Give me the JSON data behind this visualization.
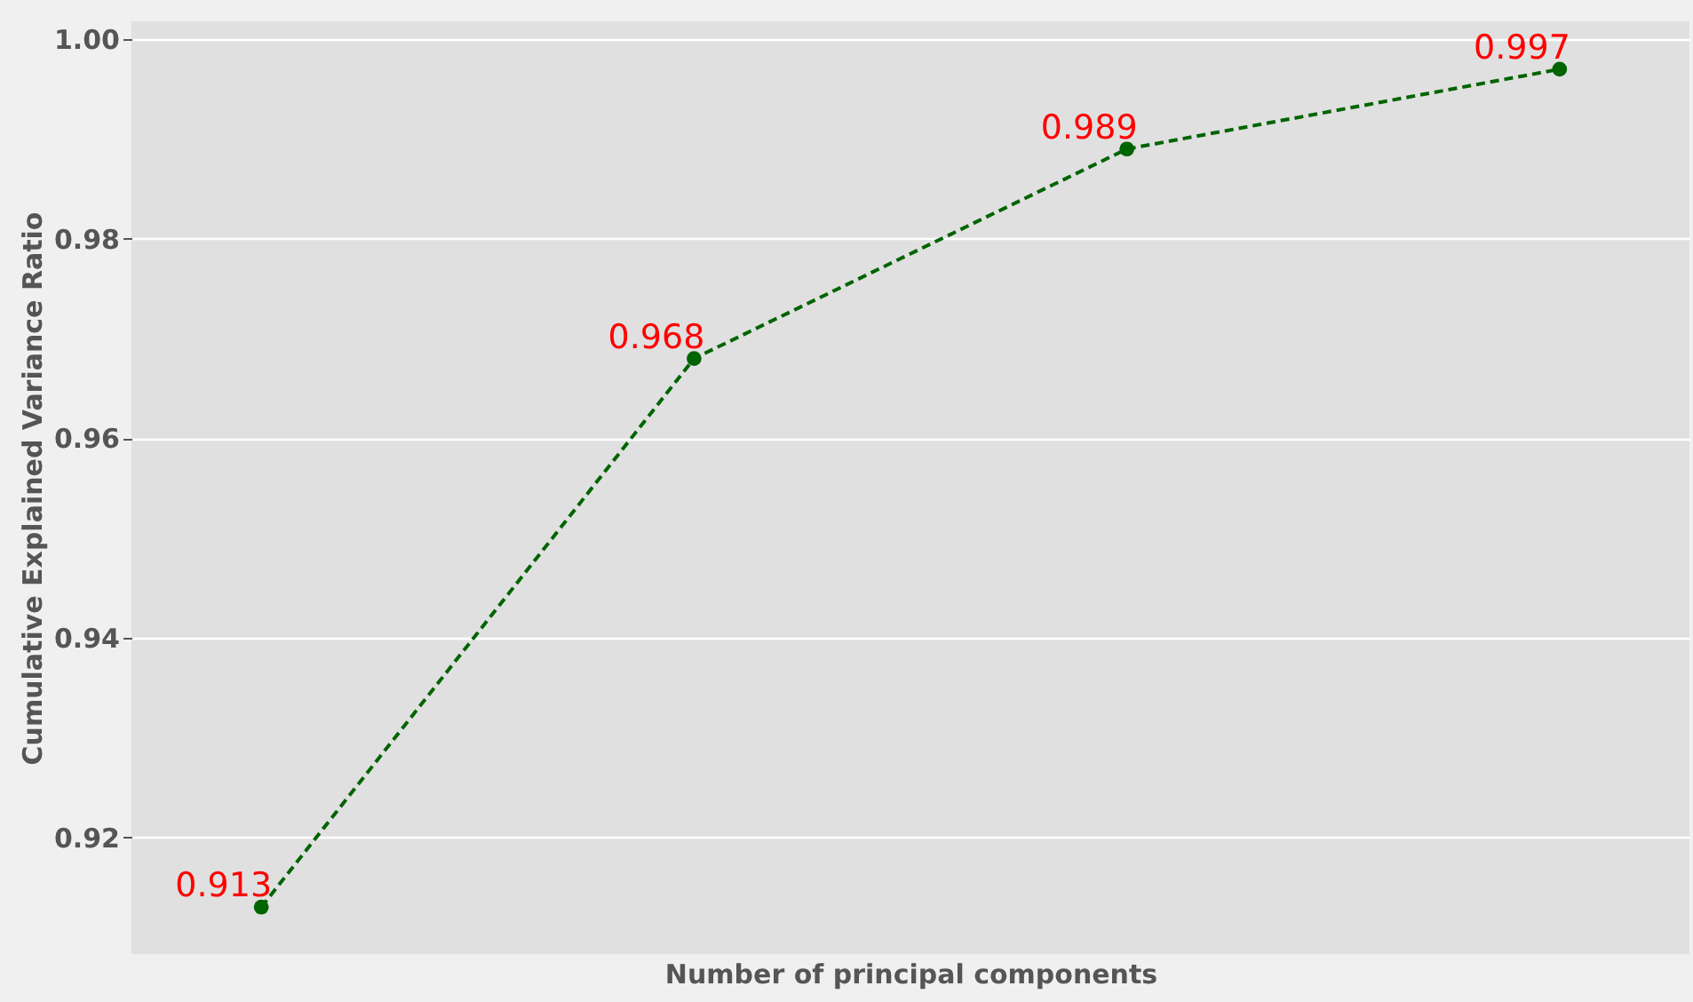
{
  "chart_data": {
    "type": "line",
    "xlabel": "Number of principal components",
    "ylabel": "Cumulative Explained Variance Ratio",
    "categories": [
      null,
      null,
      null,
      null
    ],
    "series": [
      {
        "color": "#006400",
        "values": [
          0.913,
          0.968,
          0.989,
          0.997
        ]
      }
    ],
    "ylim": [
      0.9083,
      1.0018
    ],
    "yticks": [
      {
        "value": 0.92,
        "label": "0.92"
      },
      {
        "value": 0.94,
        "label": "0.94"
      },
      {
        "value": 0.96,
        "label": "0.96"
      },
      {
        "value": 0.98,
        "label": "0.98"
      },
      {
        "value": 1.0,
        "label": "1.00"
      }
    ],
    "grid": "y",
    "marker": "circle",
    "line_style": "dashed",
    "data_labels": true,
    "tick_labels": "y"
  }
}
